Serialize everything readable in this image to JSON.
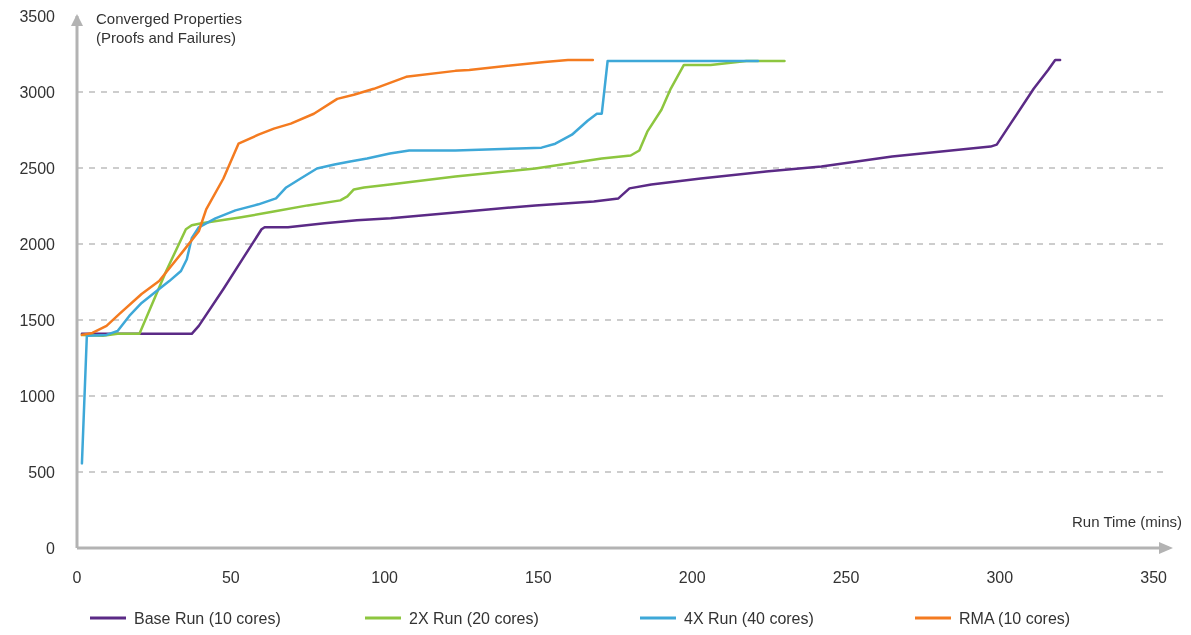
{
  "chart_data": {
    "type": "line",
    "xlabel": "Run Time (mins)",
    "ylabel": "Converged Properties\n(Proofs and Failures)",
    "xlim": [
      0,
      355
    ],
    "ylim": [
      0,
      3500
    ],
    "xticks": [
      0,
      50,
      100,
      150,
      200,
      250,
      300,
      350
    ],
    "yticks": [
      0,
      500,
      1000,
      1500,
      2000,
      2500,
      3000,
      3500
    ],
    "grid": "y",
    "legend": "bottom",
    "marker": "none",
    "line_style": "solid",
    "series": [
      {
        "name": "Base Run (10 cores)",
        "color": "#5b2a86",
        "x": [
          1.6,
          37.3,
          39.6,
          47.6,
          54,
          60,
          61,
          68.6,
          80.5,
          91,
          102,
          123,
          149,
          168,
          176,
          179.6,
          186.7,
          202.8,
          224,
          242,
          265,
          297,
          299,
          303.5,
          311,
          315.7,
          318,
          319.6
        ],
        "values": [
          1410,
          1409,
          1461,
          1704,
          1907,
          2097,
          2110,
          2110,
          2136,
          2156,
          2169,
          2208,
          2254,
          2280,
          2300,
          2366,
          2392,
          2431,
          2477,
          2510,
          2575,
          2641,
          2654,
          2792,
          3021,
          3145,
          3210,
          3210
        ]
      },
      {
        "name": "2X Run (20 cores)",
        "color": "#8dc63f",
        "x": [
          1.6,
          8.4,
          13.2,
          20.3,
          29,
          35.4,
          37.3,
          40.5,
          53.4,
          64.4,
          75,
          85.6,
          87.9,
          90,
          93.3,
          101.7,
          123,
          149,
          170.6,
          180,
          182.8,
          185.4,
          190,
          193,
          197.3,
          206,
          217.6,
          230
        ],
        "values": [
          1402,
          1396,
          1409,
          1409,
          1822,
          2097,
          2123,
          2136,
          2176,
          2215,
          2254,
          2287,
          2313,
          2359,
          2372,
          2392,
          2444,
          2497,
          2562,
          2582,
          2615,
          2739,
          2883,
          3021,
          3178,
          3178,
          3204,
          3204
        ]
      },
      {
        "name": "4X Run (40 cores)",
        "color": "#3ea8d8",
        "x": [
          1.6,
          3.2,
          9.6,
          13.2,
          17,
          21,
          26.7,
          30,
          33.8,
          35.7,
          37.3,
          39.6,
          45,
          51.5,
          59,
          64.7,
          68,
          72.7,
          78,
          83.7,
          88.8,
          94.3,
          101.7,
          108,
          123,
          143.5,
          151,
          155.5,
          160.9,
          166,
          169,
          170.6,
          172.5,
          221.4
        ],
        "values": [
          557,
          1396,
          1402,
          1428,
          1527,
          1612,
          1704,
          1756,
          1822,
          1900,
          2038,
          2110,
          2169,
          2221,
          2261,
          2300,
          2372,
          2431,
          2497,
          2523,
          2543,
          2562,
          2595,
          2615,
          2615,
          2628,
          2634,
          2660,
          2719,
          2811,
          2857,
          2857,
          3204,
          3204
        ]
      },
      {
        "name": "RMA (10 cores)",
        "color": "#f47b20",
        "x": [
          1.6,
          5,
          9.6,
          13.8,
          21,
          26.7,
          34,
          39.6,
          42,
          47.6,
          52.5,
          59,
          64,
          69.5,
          77,
          84.6,
          90,
          96.5,
          107,
          123,
          127.5,
          152,
          159.6,
          167.7
        ],
        "values": [
          1402,
          1415,
          1461,
          1540,
          1671,
          1756,
          1940,
          2084,
          2228,
          2431,
          2660,
          2719,
          2759,
          2792,
          2857,
          2955,
          2982,
          3021,
          3100,
          3139,
          3145,
          3198,
          3211,
          3211
        ]
      }
    ]
  }
}
